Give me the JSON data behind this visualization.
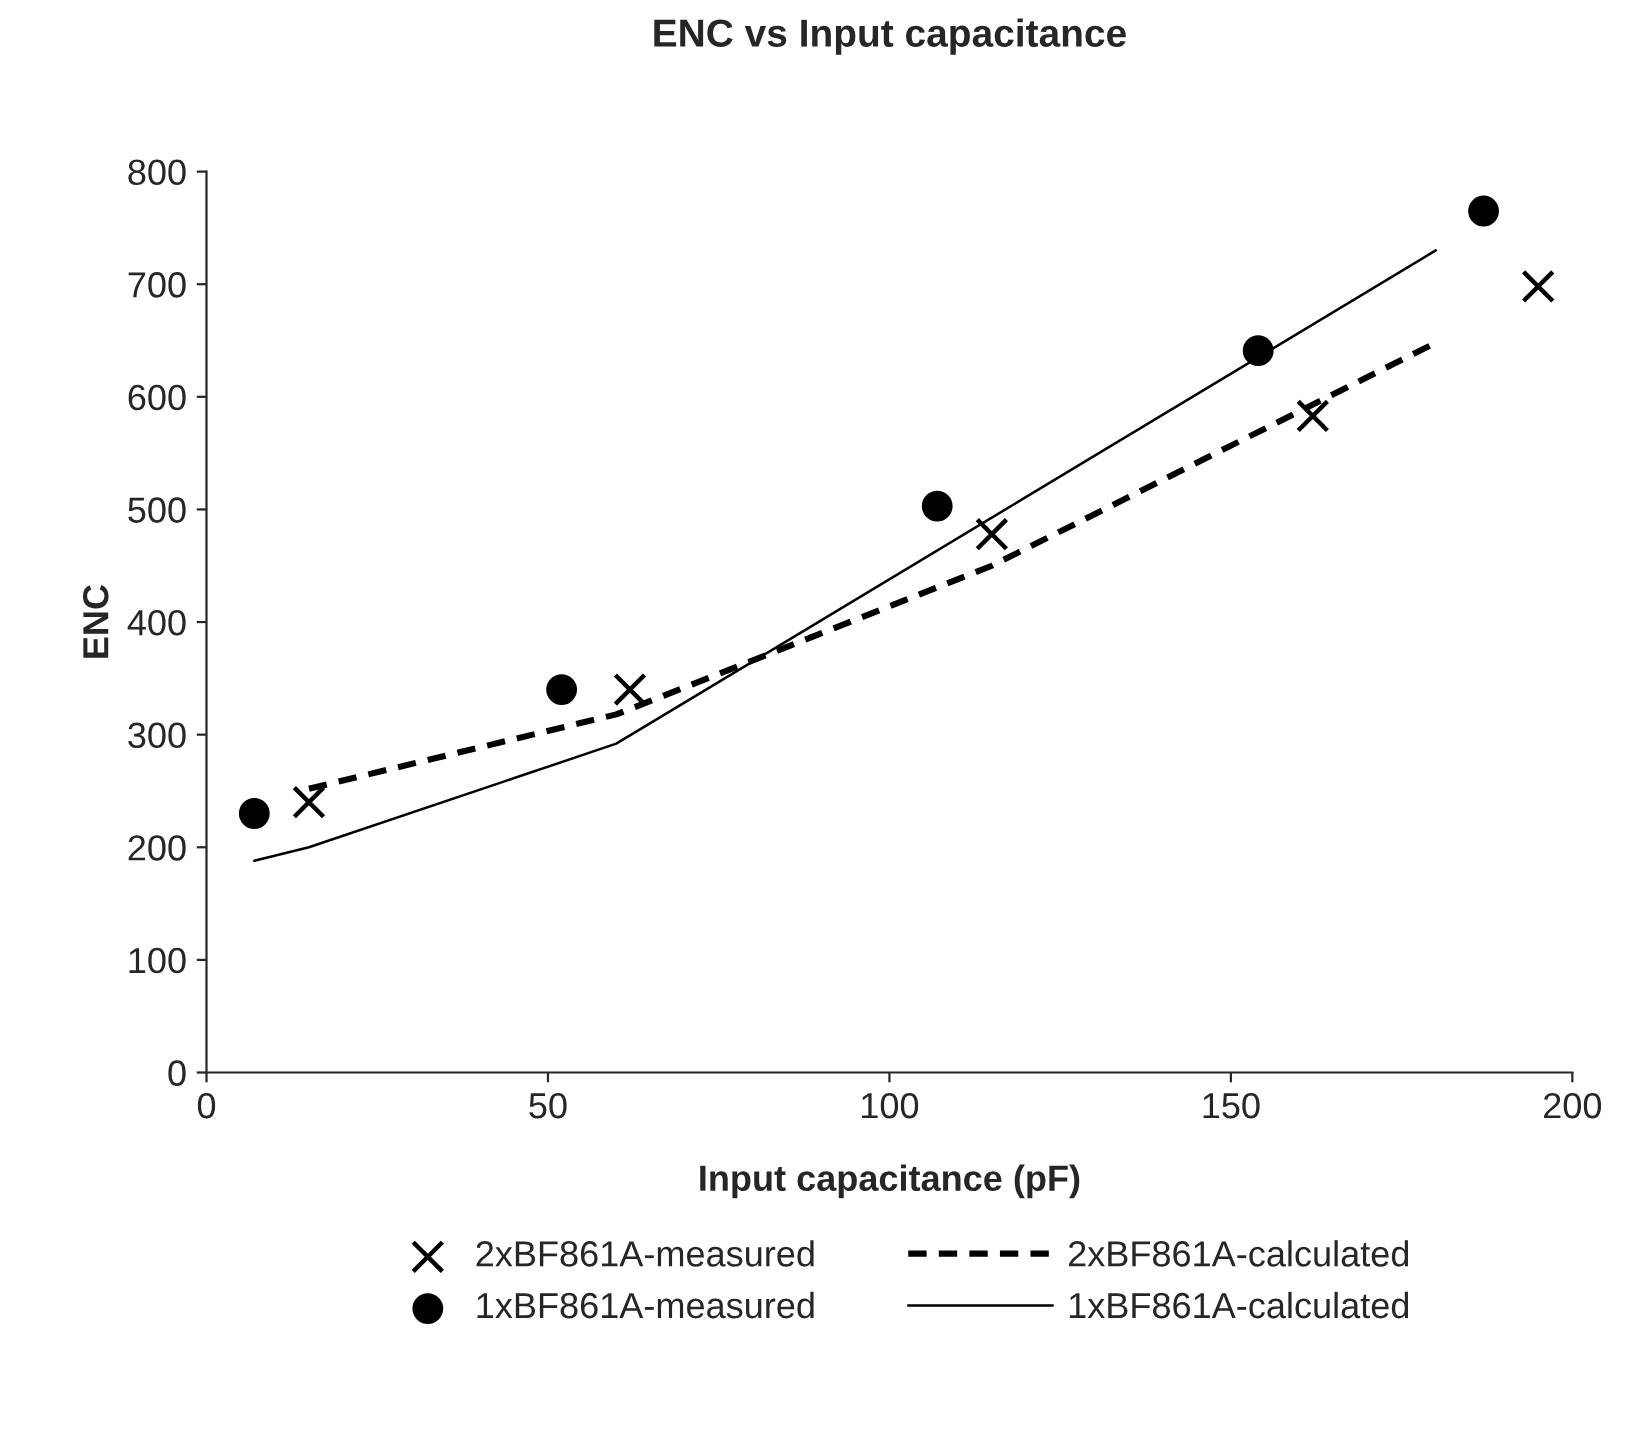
{
  "chart_data": {
    "type": "line",
    "title": "ENC vs Input capacitance",
    "xlabel": "Input capacitance (pF)",
    "ylabel": "ENC",
    "xlim": [
      0,
      200
    ],
    "xticks": [
      0,
      50,
      100,
      150,
      200
    ],
    "ylim": [
      0,
      800
    ],
    "yticks": [
      0,
      100,
      200,
      300,
      400,
      500,
      600,
      700,
      800
    ],
    "grid": false,
    "legend": "bottom",
    "series": [
      {
        "name": "2xBF861A-measured",
        "type": "scatter",
        "marker": "cross",
        "color": "#000000",
        "x": [
          15,
          62,
          115,
          162,
          195
        ],
        "values": [
          240,
          340,
          478,
          583,
          698
        ]
      },
      {
        "name": "1xBF861A-measured",
        "type": "scatter",
        "marker": "circle",
        "color": "#000000",
        "x": [
          7,
          52,
          107,
          154,
          187
        ],
        "values": [
          230,
          340,
          503,
          641,
          765
        ]
      },
      {
        "name": "2xBF861A-calculated",
        "line_style": "dashed",
        "color": "#000000",
        "x": [
          15,
          60,
          115,
          180
        ],
        "values": [
          252,
          318,
          450,
          648
        ]
      },
      {
        "name": "1xBF861A-calculated",
        "line_style": "solid",
        "color": "#000000",
        "x": [
          7,
          15,
          60,
          180
        ],
        "values": [
          188,
          200,
          292,
          730
        ]
      }
    ]
  }
}
